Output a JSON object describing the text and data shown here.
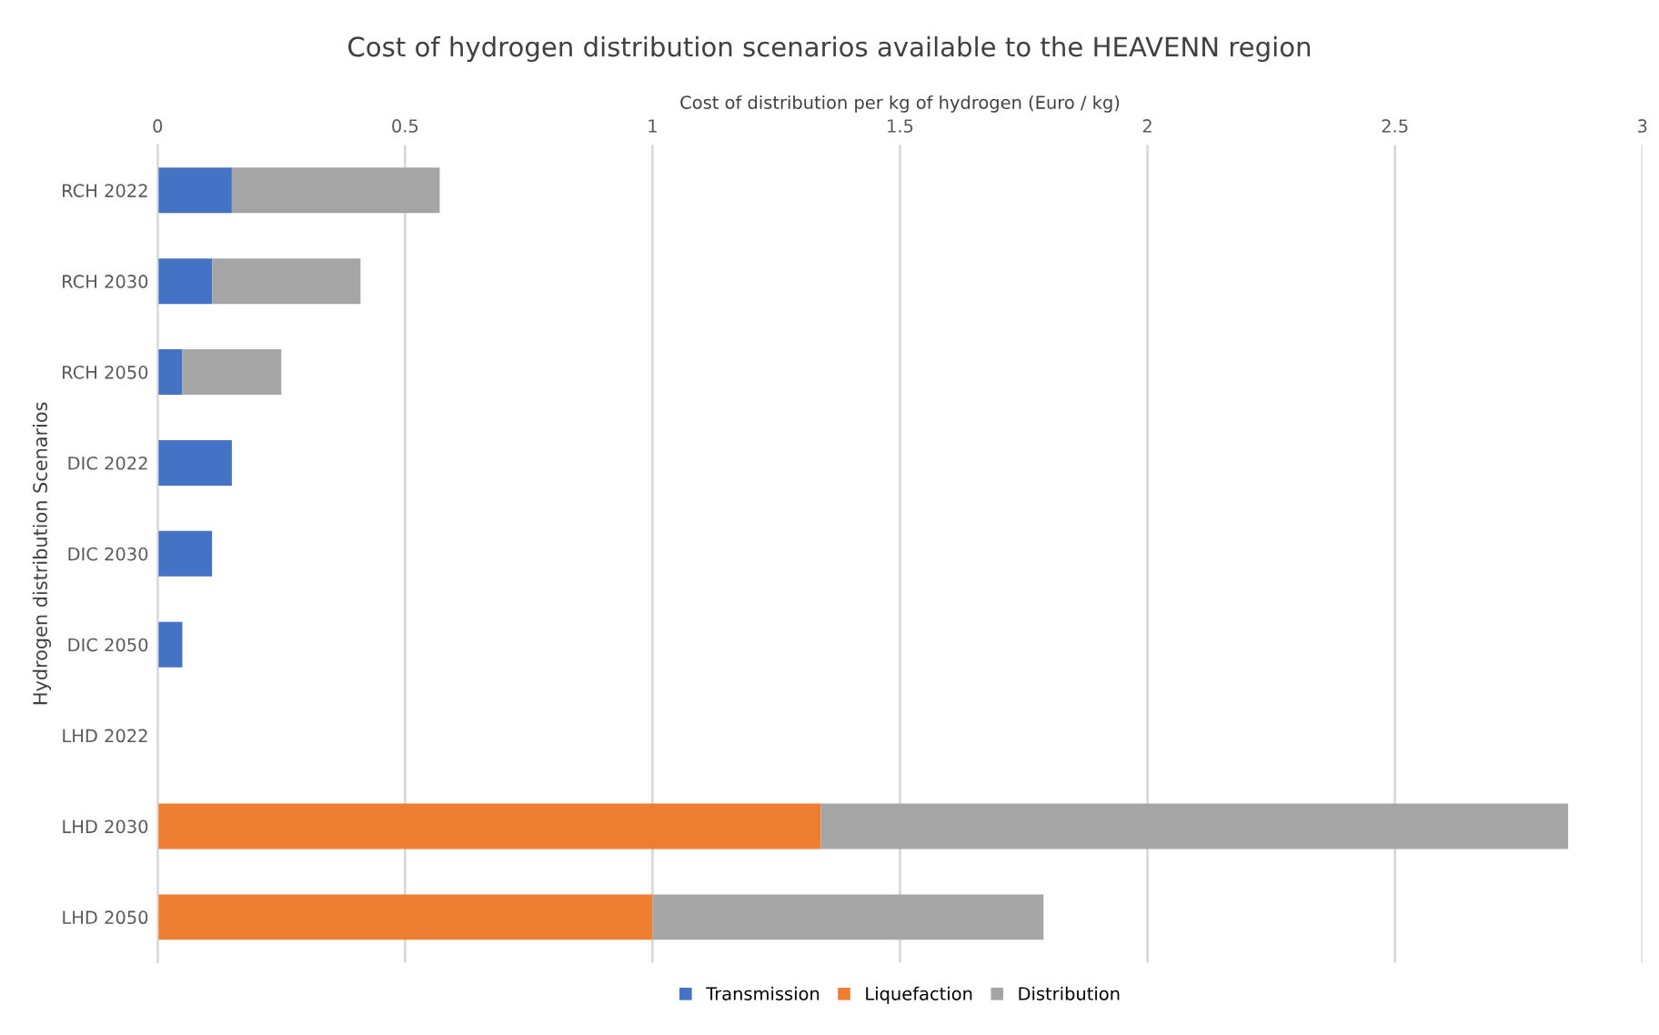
{
  "chart_data": {
    "type": "bar",
    "orientation": "horizontal",
    "stacked": true,
    "title": "Cost of hydrogen distribution scenarios available to the HEAVENN region",
    "xlabel": "Cost of distribution per kg of hydrogen (Euro / kg)",
    "ylabel": "Hydrogen distribution Scenarios",
    "categories": [
      "RCH 2022",
      "RCH 2030",
      "RCH 2050",
      "DIC 2022",
      "DIC 2030",
      "DIC 2050",
      "LHD 2022",
      "LHD 2030",
      "LHD 2050"
    ],
    "series": [
      {
        "name": "Transmission",
        "color": "#4472c4",
        "values": [
          0.15,
          0.11,
          0.05,
          0.15,
          0.11,
          0.05,
          null,
          null,
          null
        ]
      },
      {
        "name": "Liquefaction",
        "color": "#ed7d31",
        "values": [
          null,
          null,
          null,
          null,
          null,
          null,
          null,
          1.34,
          1.0
        ]
      },
      {
        "name": "Distribution",
        "color": "#a5a5a5",
        "values": [
          0.42,
          0.3,
          0.2,
          null,
          null,
          null,
          null,
          1.51,
          0.79
        ]
      }
    ],
    "xlim": [
      0,
      3
    ],
    "xticks": [
      0,
      0.5,
      1,
      1.5,
      2,
      2.5,
      3
    ],
    "grid": "x",
    "legend": "bottom"
  }
}
